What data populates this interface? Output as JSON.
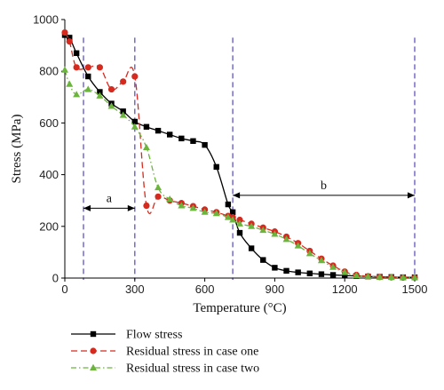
{
  "chart_data": {
    "type": "line",
    "xlabel": "Temperature (°C)",
    "ylabel": "Stress (MPa)",
    "xlim": [
      0,
      1500
    ],
    "ylim": [
      0,
      1000
    ],
    "x_ticks": [
      0,
      300,
      600,
      900,
      1200,
      1500
    ],
    "y_ticks": [
      0,
      200,
      400,
      600,
      800,
      1000
    ],
    "grid": false,
    "legend_position": "bottom-left",
    "series": [
      {
        "name": "Flow stress",
        "color": "#000000",
        "marker": "square",
        "dash": "solid",
        "x": [
          0,
          20,
          50,
          100,
          150,
          200,
          250,
          300,
          350,
          400,
          450,
          500,
          550,
          600,
          650,
          700,
          720,
          750,
          800,
          850,
          900,
          950,
          1000,
          1050,
          1100,
          1150,
          1200,
          1250,
          1300,
          1350,
          1400,
          1450,
          1500
        ],
        "y": [
          940,
          930,
          870,
          780,
          720,
          675,
          645,
          605,
          585,
          570,
          555,
          540,
          530,
          515,
          430,
          285,
          255,
          175,
          115,
          70,
          40,
          28,
          22,
          18,
          15,
          12,
          10,
          8,
          6,
          5,
          4,
          3,
          3
        ]
      },
      {
        "name": "Residual stress in case one",
        "color": "#d62a1e",
        "marker": "circle",
        "dash": "long-dash",
        "x": [
          0,
          20,
          50,
          100,
          150,
          200,
          250,
          300,
          350,
          400,
          450,
          500,
          550,
          600,
          650,
          700,
          720,
          750,
          800,
          850,
          900,
          950,
          1000,
          1050,
          1100,
          1150,
          1200,
          1250,
          1300,
          1350,
          1400,
          1450,
          1500
        ],
        "y": [
          950,
          915,
          815,
          815,
          815,
          730,
          760,
          780,
          280,
          315,
          300,
          290,
          278,
          265,
          255,
          240,
          235,
          225,
          210,
          195,
          180,
          160,
          135,
          105,
          75,
          48,
          25,
          12,
          7,
          4,
          3,
          2,
          2
        ]
      },
      {
        "name": "Residual stress in case two",
        "color": "#6bb53c",
        "marker": "triangle",
        "dash": "dash-dot",
        "x": [
          0,
          20,
          50,
          100,
          150,
          200,
          250,
          300,
          350,
          400,
          450,
          500,
          550,
          600,
          650,
          700,
          720,
          750,
          800,
          850,
          900,
          950,
          1000,
          1050,
          1100,
          1150,
          1200,
          1250,
          1300,
          1350,
          1400,
          1450,
          1500
        ],
        "y": [
          805,
          750,
          710,
          730,
          705,
          665,
          630,
          585,
          505,
          350,
          305,
          280,
          270,
          255,
          250,
          235,
          225,
          210,
          200,
          185,
          170,
          150,
          125,
          95,
          68,
          42,
          22,
          10,
          6,
          4,
          3,
          2,
          2
        ]
      }
    ],
    "reference_lines": {
      "color": "#6a5fc8",
      "x": [
        80,
        300,
        720,
        1500
      ]
    },
    "annotations": [
      {
        "text": "a",
        "from": 80,
        "to": 300,
        "y": 270
      },
      {
        "text": "b",
        "from": 720,
        "to": 1500,
        "y": 320
      }
    ]
  }
}
